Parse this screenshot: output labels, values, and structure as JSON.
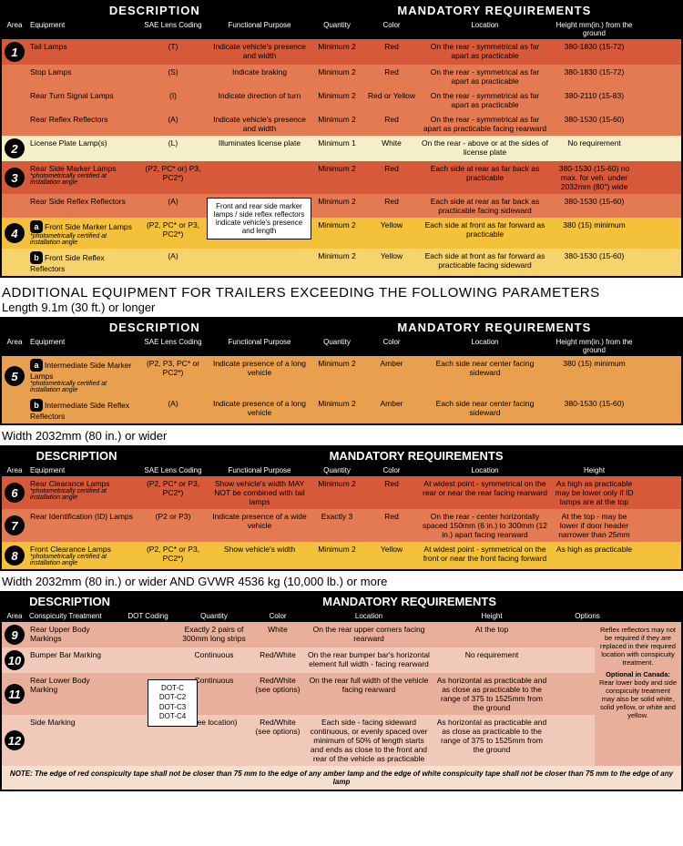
{
  "headers": {
    "description": "DESCRIPTION",
    "mandatory": "MANDATORY REQUIREMENTS",
    "area": "Area",
    "equipment": "Equipment",
    "sae": "SAE Lens Coding",
    "functional": "Functional Purpose",
    "quantity": "Quantity",
    "color": "Color",
    "location": "Location",
    "height": "Height mm(in.) from the ground",
    "height2": "Height",
    "dot": "DOT Coding",
    "consp": "Conspicuity Treatment",
    "options": "Options"
  },
  "rows1": [
    {
      "area": "1",
      "equip": "Tail Lamps",
      "sae": "(T)",
      "func": "Indicate vehicle's presence and width",
      "qty": "Minimum 2",
      "color": "Red",
      "loc": "On the rear - symmetrical as far apart as practicable",
      "height": "380-1830 (15-72)",
      "bg": "bg-red1"
    },
    {
      "area": "",
      "equip": "Stop Lamps",
      "sae": "(S)",
      "func": "Indicate braking",
      "qty": "Minimum 2",
      "color": "Red",
      "loc": "On the rear - symmetrical as far apart as practicable",
      "height": "380-1830 (15-72)",
      "bg": "bg-red2"
    },
    {
      "area": "",
      "equip": "Rear Turn Signal Lamps",
      "sae": "(I)",
      "func": "Indicate direction of turn",
      "qty": "Minimum 2",
      "color": "Red or Yellow",
      "loc": "On the rear - symmetrical as far apart as practicable",
      "height": "380-2110 (15-83)",
      "bg": "bg-red2"
    },
    {
      "area": "",
      "equip": "Rear Reflex Reflectors",
      "sae": "(A)",
      "func": "Indicate vehicle's presence and width",
      "qty": "Minimum 2",
      "color": "Red",
      "loc": "On the rear - symmetrical as far apart as practicable facing rearward",
      "height": "380-1530 (15-60)",
      "bg": "bg-red2"
    }
  ],
  "row2": {
    "area": "2",
    "equip": "License Plate Lamp(s)",
    "sae": "(L)",
    "func": "Illuminates license plate",
    "qty": "Minimum 1",
    "color": "White",
    "loc": "On the rear - above or at the sides of license plate",
    "height": "No requirement",
    "bg": "bg-cream"
  },
  "rows3": [
    {
      "area": "3",
      "equip": "Rear Side Marker Lamps",
      "note": "*photometrically certified at installation angle",
      "sae": "(P2, PC* or) P3, PC2*)",
      "func": "",
      "qty": "Minimum 2",
      "color": "Red",
      "loc": "Each side at rear as far back as practicable",
      "height": "380-1530 (15-60) no max. for veh. under 2032mm (80\") wide",
      "bg": "bg-red1"
    },
    {
      "area": "",
      "equip": "Rear Side Reflex Reflectors",
      "sae": "(A)",
      "func": "",
      "qty": "Minimum 2",
      "color": "Red",
      "loc": "Each side at rear as far back as practicable facing sideward",
      "height": "380-1530 (15-60)",
      "bg": "bg-red2"
    }
  ],
  "rows4": [
    {
      "area": "4",
      "sub": "a",
      "equip": "Front Side Marker Lamps",
      "note": "*photometrically certified at installation angle",
      "sae": "(P2, PC* or P3, PC2*)",
      "func": "",
      "qty": "Minimum 2",
      "color": "Yellow",
      "loc": "Each side at front as far forward as practicable",
      "height": "380 (15) minimum",
      "bg": "bg-yellow"
    },
    {
      "area": "",
      "sub": "b",
      "equip": "Front Side Reflex Reflectors",
      "sae": "(A)",
      "func": "",
      "qty": "Minimum 2",
      "color": "Yellow",
      "loc": "Each side at front as far forward as practicable facing sideward",
      "height": "380-1530 (15-60)",
      "bg": "bg-yellow2"
    }
  ],
  "callout1": "Front and rear side marker lamps / side reflex reflectors indicate vehicle's presence and length",
  "heading_additional": "ADDITIONAL EQUIPMENT FOR TRAILERS EXCEEDING THE FOLLOWING PARAMETERS",
  "heading_length": "Length 9.1m (30 ft.) or longer",
  "rows5": [
    {
      "area": "5",
      "sub": "a",
      "equip": "Intermediate Side Marker Lamps",
      "note": "*photometrically certified at installation angle",
      "sae": "(P2, P3, PC* or PC2*)",
      "func": "Indicate presence of a long vehicle",
      "qty": "Minimum 2",
      "color": "Amber",
      "loc": "Each side near center facing sideward",
      "height": "380 (15) minimum",
      "bg": "bg-amber"
    },
    {
      "area": "",
      "sub": "b",
      "equip": "Intermediate Side Reflex Reflectors",
      "sae": "(A)",
      "func": "Indicate presence of a long vehicle",
      "qty": "Minimum 2",
      "color": "Amber",
      "loc": "Each side near center facing sideward",
      "height": "380-1530 (15-60)",
      "bg": "bg-amber"
    }
  ],
  "heading_width": "Width 2032mm (80 in.) or wider",
  "rows678": [
    {
      "area": "6",
      "equip": "Rear Clearance Lamps",
      "note": "*photometrically certified at installation angle",
      "sae": "(P2, PC* or P3, PC2*)",
      "func": "Show vehicle's width MAY NOT be combined with tail lamps",
      "qty": "Minimum 2",
      "color": "Red",
      "loc": "At widest point - symmetrical on the rear or near the rear facing rearward",
      "height": "As high as practicable may be lower only if ID lamps are at the top",
      "bg": "bg-red1"
    },
    {
      "area": "7",
      "equip": "Rear Identification (ID) Lamps",
      "sae": "(P2 or P3)",
      "func": "Indicate presence of a wide vehicle",
      "qty": "Exactly 3",
      "color": "Red",
      "loc": "On the rear - center horizontally spaced 150mm (6 in.) to 300mm (12 in.) apart facing rearward",
      "height": "At the top - may be lower if door header narrower than 25mm",
      "bg": "bg-red2"
    },
    {
      "area": "8",
      "equip": "Front Clearance Lamps",
      "note": "*photometrically certified at installation angle",
      "sae": "(P2, PC* or P3, PC2*)",
      "func": "Show vehicle's width",
      "qty": "Minimum 2",
      "color": "Yellow",
      "loc": "At widest point - symmetrical on the front or near the front facing forward",
      "height": "As high as practicable",
      "bg": "bg-yellow"
    }
  ],
  "heading_width_gvwr": "Width 2032mm (80 in.) or wider AND GVWR 4536 kg (10,000 lb.) or more",
  "dot_codes": "DOT-C DOT-C2 DOT-C3 DOT-C4",
  "rows9_12": [
    {
      "area": "9",
      "equip": "Rear Upper Body Markings",
      "qty": "Exactly 2 pairs of 300mm long strips",
      "color": "White",
      "loc": "On the rear upper corners facing rearward",
      "height": "At the top",
      "bg": "bg-pink1"
    },
    {
      "area": "10",
      "equip": "Bumper Bar Marking",
      "qty": "Continuous",
      "color": "Red/White",
      "loc": "On the rear bumper bar's horizontal element full width - facing rearward",
      "height": "No requirement",
      "bg": "bg-pink2"
    },
    {
      "area": "11",
      "equip": "Rear Lower Body Marking",
      "qty": "Continuous",
      "color": "Red/White (see options)",
      "loc": "On the rear full width of the vehicle facing rearward",
      "height": "As horizontal as practicable and as close as practicable to the range of 375 to 1525mm from the ground",
      "bg": "bg-pink1"
    },
    {
      "area": "12",
      "equip": "Side Marking",
      "qty": "(see location)",
      "color": "Red/White (see options)",
      "loc": "Each side - facing sideward continuous, or evenly spaced over minimum of 50% of length starts and ends as close to the front and rear of the vehicle as practicable",
      "height": "As horizontal as practicable and as close as practicable to the range of 375 to 1525mm from the ground",
      "bg": "bg-pink2"
    }
  ],
  "options_text": {
    "p1": "Reflex reflectors may not be required if they are replaced in their required location with conspicuity treatment.",
    "p2": "Optional in Canada:",
    "p3": "Rear lower body and side conspicuity treatment may also be solid white, solid yellow, or white and yellow."
  },
  "note_bottom": "NOTE: The edge of red conspicuity tape shall not be closer than 75 mm to the edge of any amber lamp and the edge of white conspicuity tape shall not be closer than 75 mm to the edge of any lamp"
}
